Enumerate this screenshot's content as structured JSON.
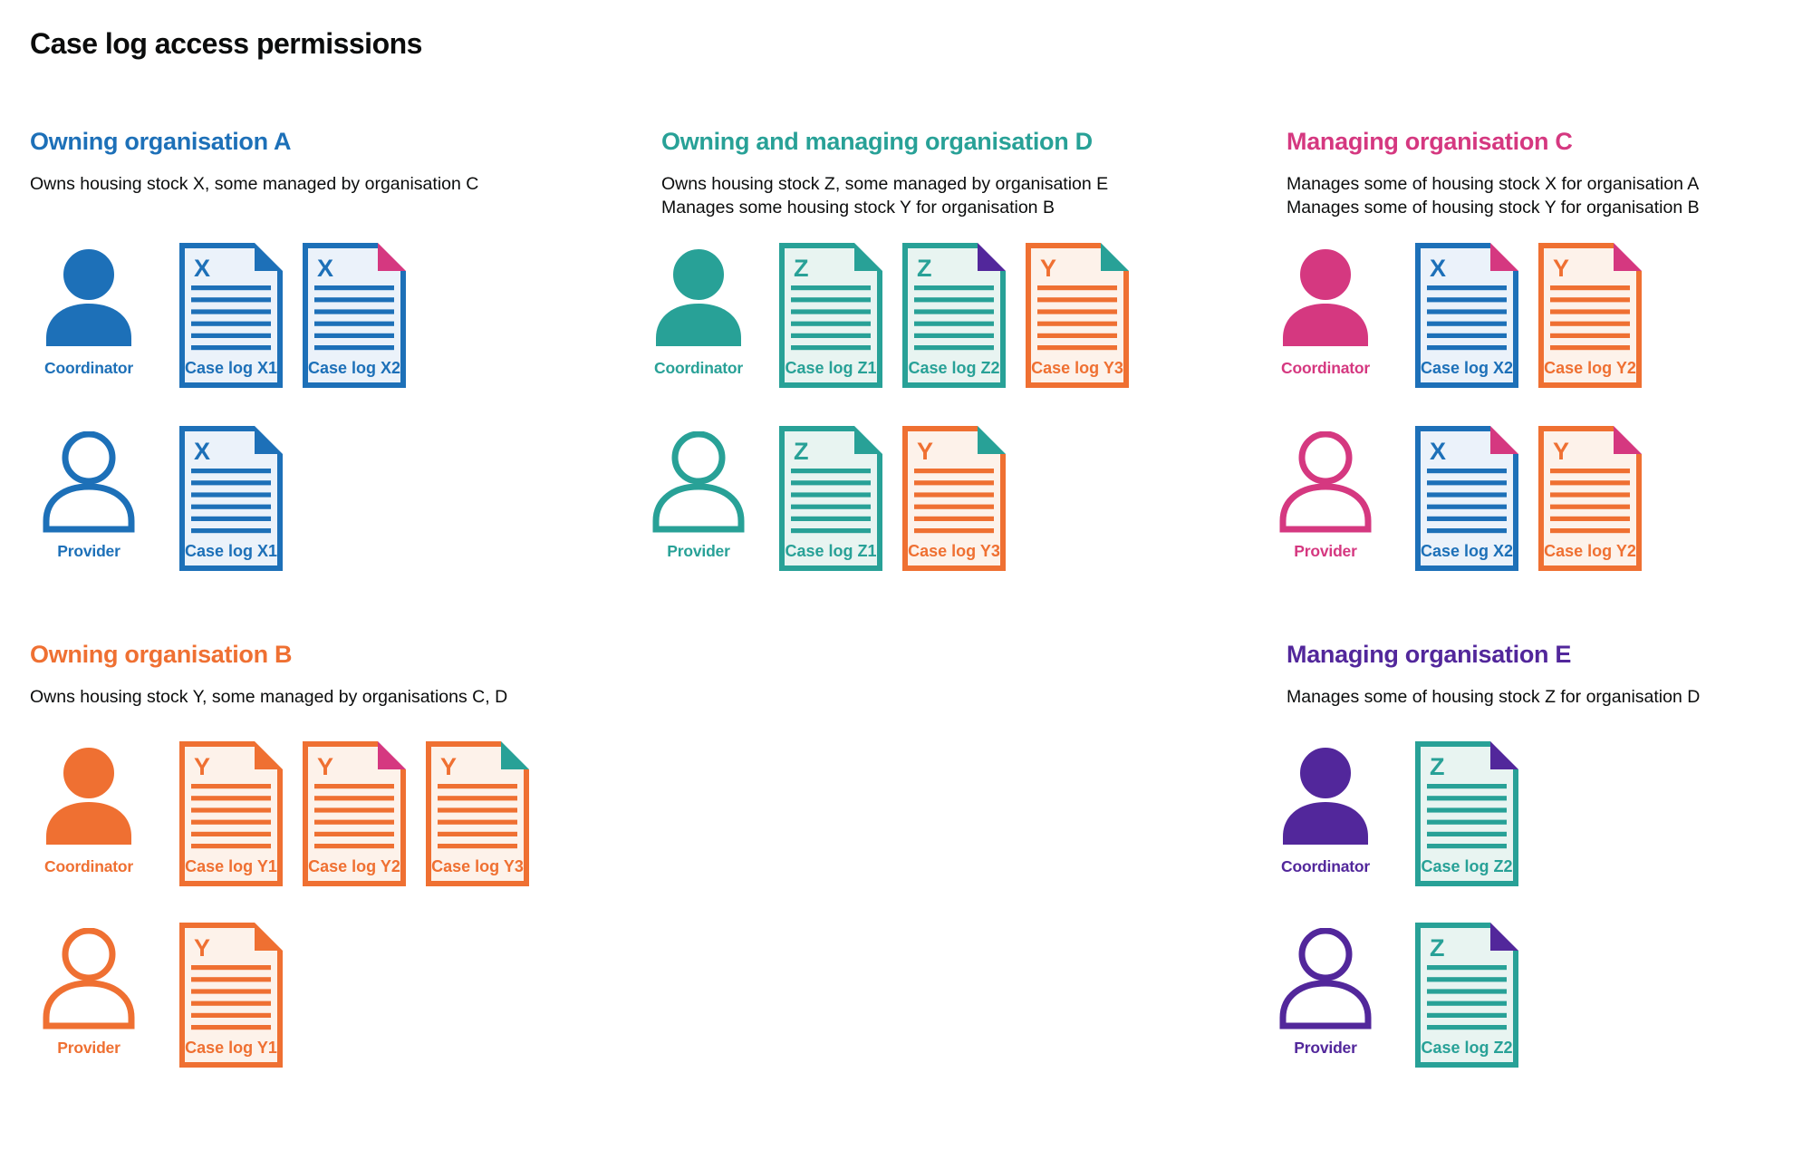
{
  "page_title": "Case log access permissions",
  "colors": {
    "blue": "#1d70b8",
    "teal": "#28a197",
    "pink": "#d53880",
    "orange": "#ef7032",
    "purple": "#52279b",
    "text": "#0b0c0c"
  },
  "tints": {
    "blue": "#ebf2fa",
    "teal": "#e8f4f1",
    "orange": "#fdf2ea"
  },
  "sections": [
    {
      "id": "A",
      "color": "blue",
      "title": "Owning organisation A",
      "subtitle": [
        "Owns housing stock X, some managed by organisation C"
      ],
      "rows": [
        {
          "role": "Coordinator",
          "docs": [
            {
              "letter": "X",
              "label": "Case log X1",
              "page": "blue",
              "fold": "blue"
            },
            {
              "letter": "X",
              "label": "Case log X2",
              "page": "blue",
              "fold": "pink"
            }
          ]
        },
        {
          "role": "Provider",
          "docs": [
            {
              "letter": "X",
              "label": "Case log X1",
              "page": "blue",
              "fold": "blue"
            }
          ]
        }
      ]
    },
    {
      "id": "D",
      "color": "teal",
      "title": "Owning and managing organisation D",
      "subtitle": [
        "Owns housing stock Z, some managed by organisation E",
        "Manages some housing stock Y for organisation B"
      ],
      "rows": [
        {
          "role": "Coordinator",
          "docs": [
            {
              "letter": "Z",
              "label": "Case log Z1",
              "page": "teal",
              "fold": "teal"
            },
            {
              "letter": "Z",
              "label": "Case log Z2",
              "page": "teal",
              "fold": "purple"
            },
            {
              "letter": "Y",
              "label": "Case log Y3",
              "page": "orange",
              "fold": "teal"
            }
          ]
        },
        {
          "role": "Provider",
          "docs": [
            {
              "letter": "Z",
              "label": "Case log Z1",
              "page": "teal",
              "fold": "teal"
            },
            {
              "letter": "Y",
              "label": "Case log Y3",
              "page": "orange",
              "fold": "teal"
            }
          ]
        }
      ]
    },
    {
      "id": "C",
      "color": "pink",
      "title": "Managing organisation C",
      "subtitle": [
        "Manages some of housing stock X for organisation A",
        "Manages some of housing stock Y for organisation B"
      ],
      "rows": [
        {
          "role": "Coordinator",
          "docs": [
            {
              "letter": "X",
              "label": "Case log X2",
              "page": "blue",
              "fold": "pink"
            },
            {
              "letter": "Y",
              "label": "Case log Y2",
              "page": "orange",
              "fold": "pink"
            }
          ]
        },
        {
          "role": "Provider",
          "docs": [
            {
              "letter": "X",
              "label": "Case log X2",
              "page": "blue",
              "fold": "pink"
            },
            {
              "letter": "Y",
              "label": "Case log Y2",
              "page": "orange",
              "fold": "pink"
            }
          ]
        }
      ]
    },
    {
      "id": "B",
      "color": "orange",
      "title": "Owning organisation B",
      "subtitle": [
        "Owns housing stock Y, some managed by organisations C, D"
      ],
      "rows": [
        {
          "role": "Coordinator",
          "docs": [
            {
              "letter": "Y",
              "label": "Case log Y1",
              "page": "orange",
              "fold": "orange"
            },
            {
              "letter": "Y",
              "label": "Case log Y2",
              "page": "orange",
              "fold": "pink"
            },
            {
              "letter": "Y",
              "label": "Case log Y3",
              "page": "orange",
              "fold": "teal"
            }
          ]
        },
        {
          "role": "Provider",
          "docs": [
            {
              "letter": "Y",
              "label": "Case log Y1",
              "page": "orange",
              "fold": "orange"
            }
          ]
        }
      ]
    },
    {
      "id": "E",
      "color": "purple",
      "title": "Managing organisation E",
      "subtitle": [
        "Manages some of housing stock Z for organisation D"
      ],
      "rows": [
        {
          "role": "Coordinator",
          "docs": [
            {
              "letter": "Z",
              "label": "Case log Z2",
              "page": "teal",
              "fold": "purple"
            }
          ]
        },
        {
          "role": "Provider",
          "docs": [
            {
              "letter": "Z",
              "label": "Case log Z2",
              "page": "teal",
              "fold": "purple"
            }
          ]
        }
      ]
    }
  ]
}
